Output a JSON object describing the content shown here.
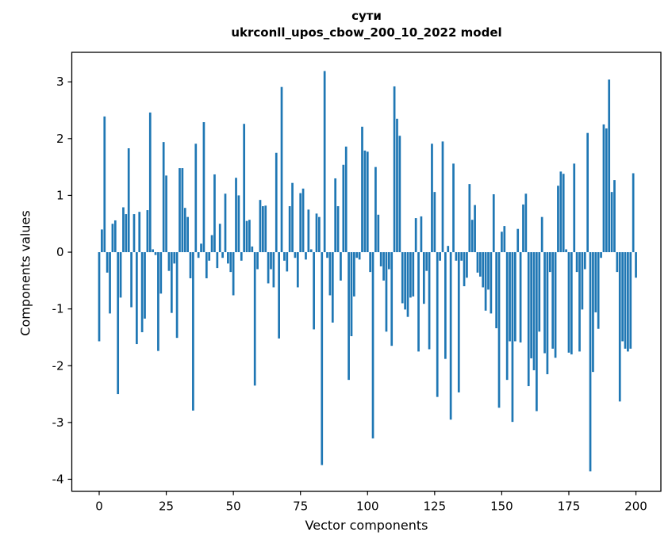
{
  "figure": {
    "title_line1": "сути",
    "title_line2": "ukrconll_upos_cbow_200_10_2022 model",
    "background_color": "#ffffff",
    "text_color": "#000000"
  },
  "chart_data": {
    "type": "bar",
    "title": "сути — ukrconll_upos_cbow_200_10_2022 model",
    "xlabel": "Vector components",
    "ylabel": "Components values",
    "x_ticks": [
      0,
      25,
      50,
      75,
      100,
      125,
      150,
      175,
      200
    ],
    "y_ticks": [
      3,
      2,
      1,
      0,
      -1,
      -2,
      -3,
      -4
    ],
    "xlim": [
      -10.2,
      209.3
    ],
    "ylim": [
      -4.21,
      3.52
    ],
    "grid": false,
    "legend_position": "none",
    "bar_color": "#1f77b4",
    "bar_width_units": 0.8,
    "x_start": 0,
    "x_step": 1,
    "values": [
      -1.57,
      0.4,
      2.39,
      -0.36,
      -1.08,
      0.5,
      0.56,
      -2.5,
      -0.8,
      0.79,
      0.67,
      1.83,
      -0.97,
      0.67,
      -1.62,
      0.71,
      -1.41,
      -1.17,
      0.74,
      2.46,
      0.05,
      -0.05,
      -1.74,
      -0.73,
      1.94,
      1.35,
      -0.33,
      -1.07,
      -0.2,
      -1.51,
      1.48,
      1.48,
      0.78,
      0.62,
      -0.46,
      -2.79,
      1.91,
      -0.1,
      0.15,
      2.29,
      -0.46,
      -0.15,
      0.3,
      1.37,
      -0.28,
      0.5,
      -0.1,
      1.03,
      -0.2,
      -0.35,
      -0.76,
      1.31,
      1.0,
      -0.15,
      2.26,
      0.55,
      0.57,
      0.1,
      -2.35,
      -0.3,
      0.92,
      0.81,
      0.82,
      -0.55,
      -0.3,
      -0.62,
      1.75,
      -1.52,
      2.91,
      -0.15,
      -0.34,
      0.81,
      1.22,
      -0.1,
      -0.62,
      1.04,
      1.12,
      -0.13,
      0.75,
      0.05,
      -1.36,
      0.68,
      0.62,
      -3.75,
      3.19,
      -0.1,
      -0.76,
      -1.24,
      1.3,
      0.81,
      -0.5,
      1.54,
      1.86,
      -2.25,
      -1.48,
      -0.78,
      -0.1,
      -0.13,
      2.21,
      1.79,
      1.77,
      -0.35,
      -3.28,
      1.5,
      0.66,
      -0.25,
      -0.5,
      -1.4,
      -0.3,
      -1.65,
      2.92,
      2.35,
      2.05,
      -0.9,
      -1.01,
      -1.14,
      -0.8,
      -0.78,
      0.6,
      -1.75,
      0.63,
      -0.91,
      -0.33,
      -1.71,
      1.91,
      1.06,
      -2.55,
      -0.15,
      1.95,
      -1.88,
      0.11,
      -2.95,
      1.56,
      -0.15,
      -2.47,
      -0.15,
      -0.6,
      -0.45,
      1.2,
      0.57,
      0.83,
      -0.36,
      -0.43,
      -0.62,
      -1.03,
      -0.66,
      -1.08,
      1.02,
      -1.34,
      -2.74,
      0.36,
      0.46,
      -2.25,
      -1.57,
      -2.99,
      -1.57,
      0.41,
      -1.59,
      0.84,
      1.03,
      -2.36,
      -1.87,
      -2.08,
      -2.8,
      -1.4,
      0.62,
      -1.78,
      -2.15,
      -0.35,
      -1.7,
      -1.86,
      1.17,
      1.42,
      1.38,
      0.05,
      -1.77,
      -1.8,
      1.56,
      -0.35,
      -1.75,
      -1.01,
      -0.3,
      2.1,
      -3.86,
      -2.11,
      -1.06,
      -1.35,
      -0.1,
      2.25,
      2.18,
      3.04,
      1.06,
      1.27,
      -0.35,
      -2.63,
      -1.57,
      -1.7,
      -1.75,
      -1.7,
      1.39,
      -0.45
    ]
  }
}
